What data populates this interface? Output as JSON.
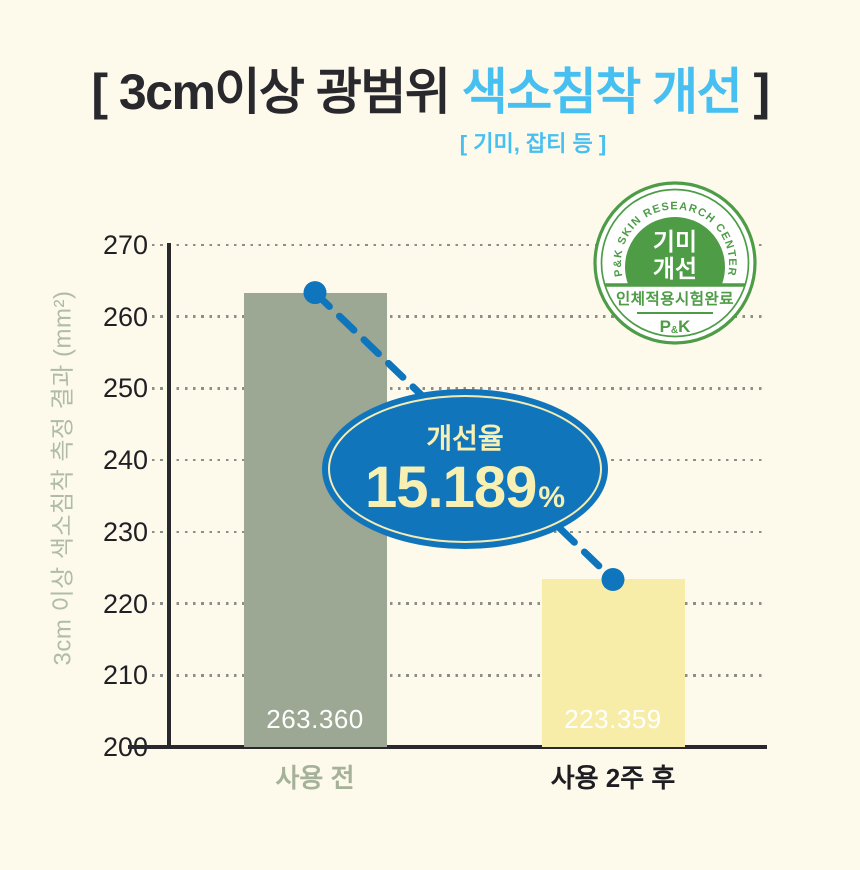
{
  "title": {
    "open": "[ ",
    "black": "3cm이상 광범위 ",
    "highlight": "색소침착 개선",
    "close": " ]",
    "subtitle": "[ 기미, 잡티 등 ]"
  },
  "seal": {
    "arc_text": "P&K SKIN RESEARCH CENTER",
    "disc_line1": "기미",
    "disc_line2": "개선",
    "caption": "인체적용시험완료",
    "logo_p": "P",
    "logo_amp": "&",
    "logo_k": "K",
    "green": "#4E9C46"
  },
  "chart_data": {
    "type": "bar",
    "title": "3cm이상 광범위 색소침착 개선",
    "categories": [
      "사용 전",
      "사용 2주 후"
    ],
    "values": [
      263.36,
      223.359
    ],
    "value_labels": [
      "263.360",
      "223.359"
    ],
    "ylabel": "3cm 이상 색소침착 측정 결과  (mm²)",
    "ylim": [
      200,
      270
    ],
    "yticks": [
      270,
      260,
      250,
      240,
      230,
      220,
      210,
      200
    ],
    "grid": "dotted-horizontal",
    "legend": "none",
    "bar_colors": [
      "#9CA894",
      "#F8EDA8"
    ],
    "category_label_colors": [
      "#A5B198",
      "#1E1D21"
    ],
    "value_label_color": "#FFFFFF",
    "trend_line": {
      "style": "dashed",
      "color": "#0F75BC",
      "connects": [
        263.36,
        223.359
      ]
    },
    "annotation": {
      "label": "개선율",
      "value": "15.189",
      "unit": "%",
      "fill": "#1175BC",
      "text_color": "#F8EFB3"
    }
  },
  "colors": {
    "background": "#FDFAEC",
    "title_dark": "#29282C",
    "title_blue": "#47C0F1",
    "axis": "#29282D",
    "grid_dot": "#8D8D89",
    "tick_text": "#201F24",
    "ylabel_text": "#B0BCA7"
  }
}
